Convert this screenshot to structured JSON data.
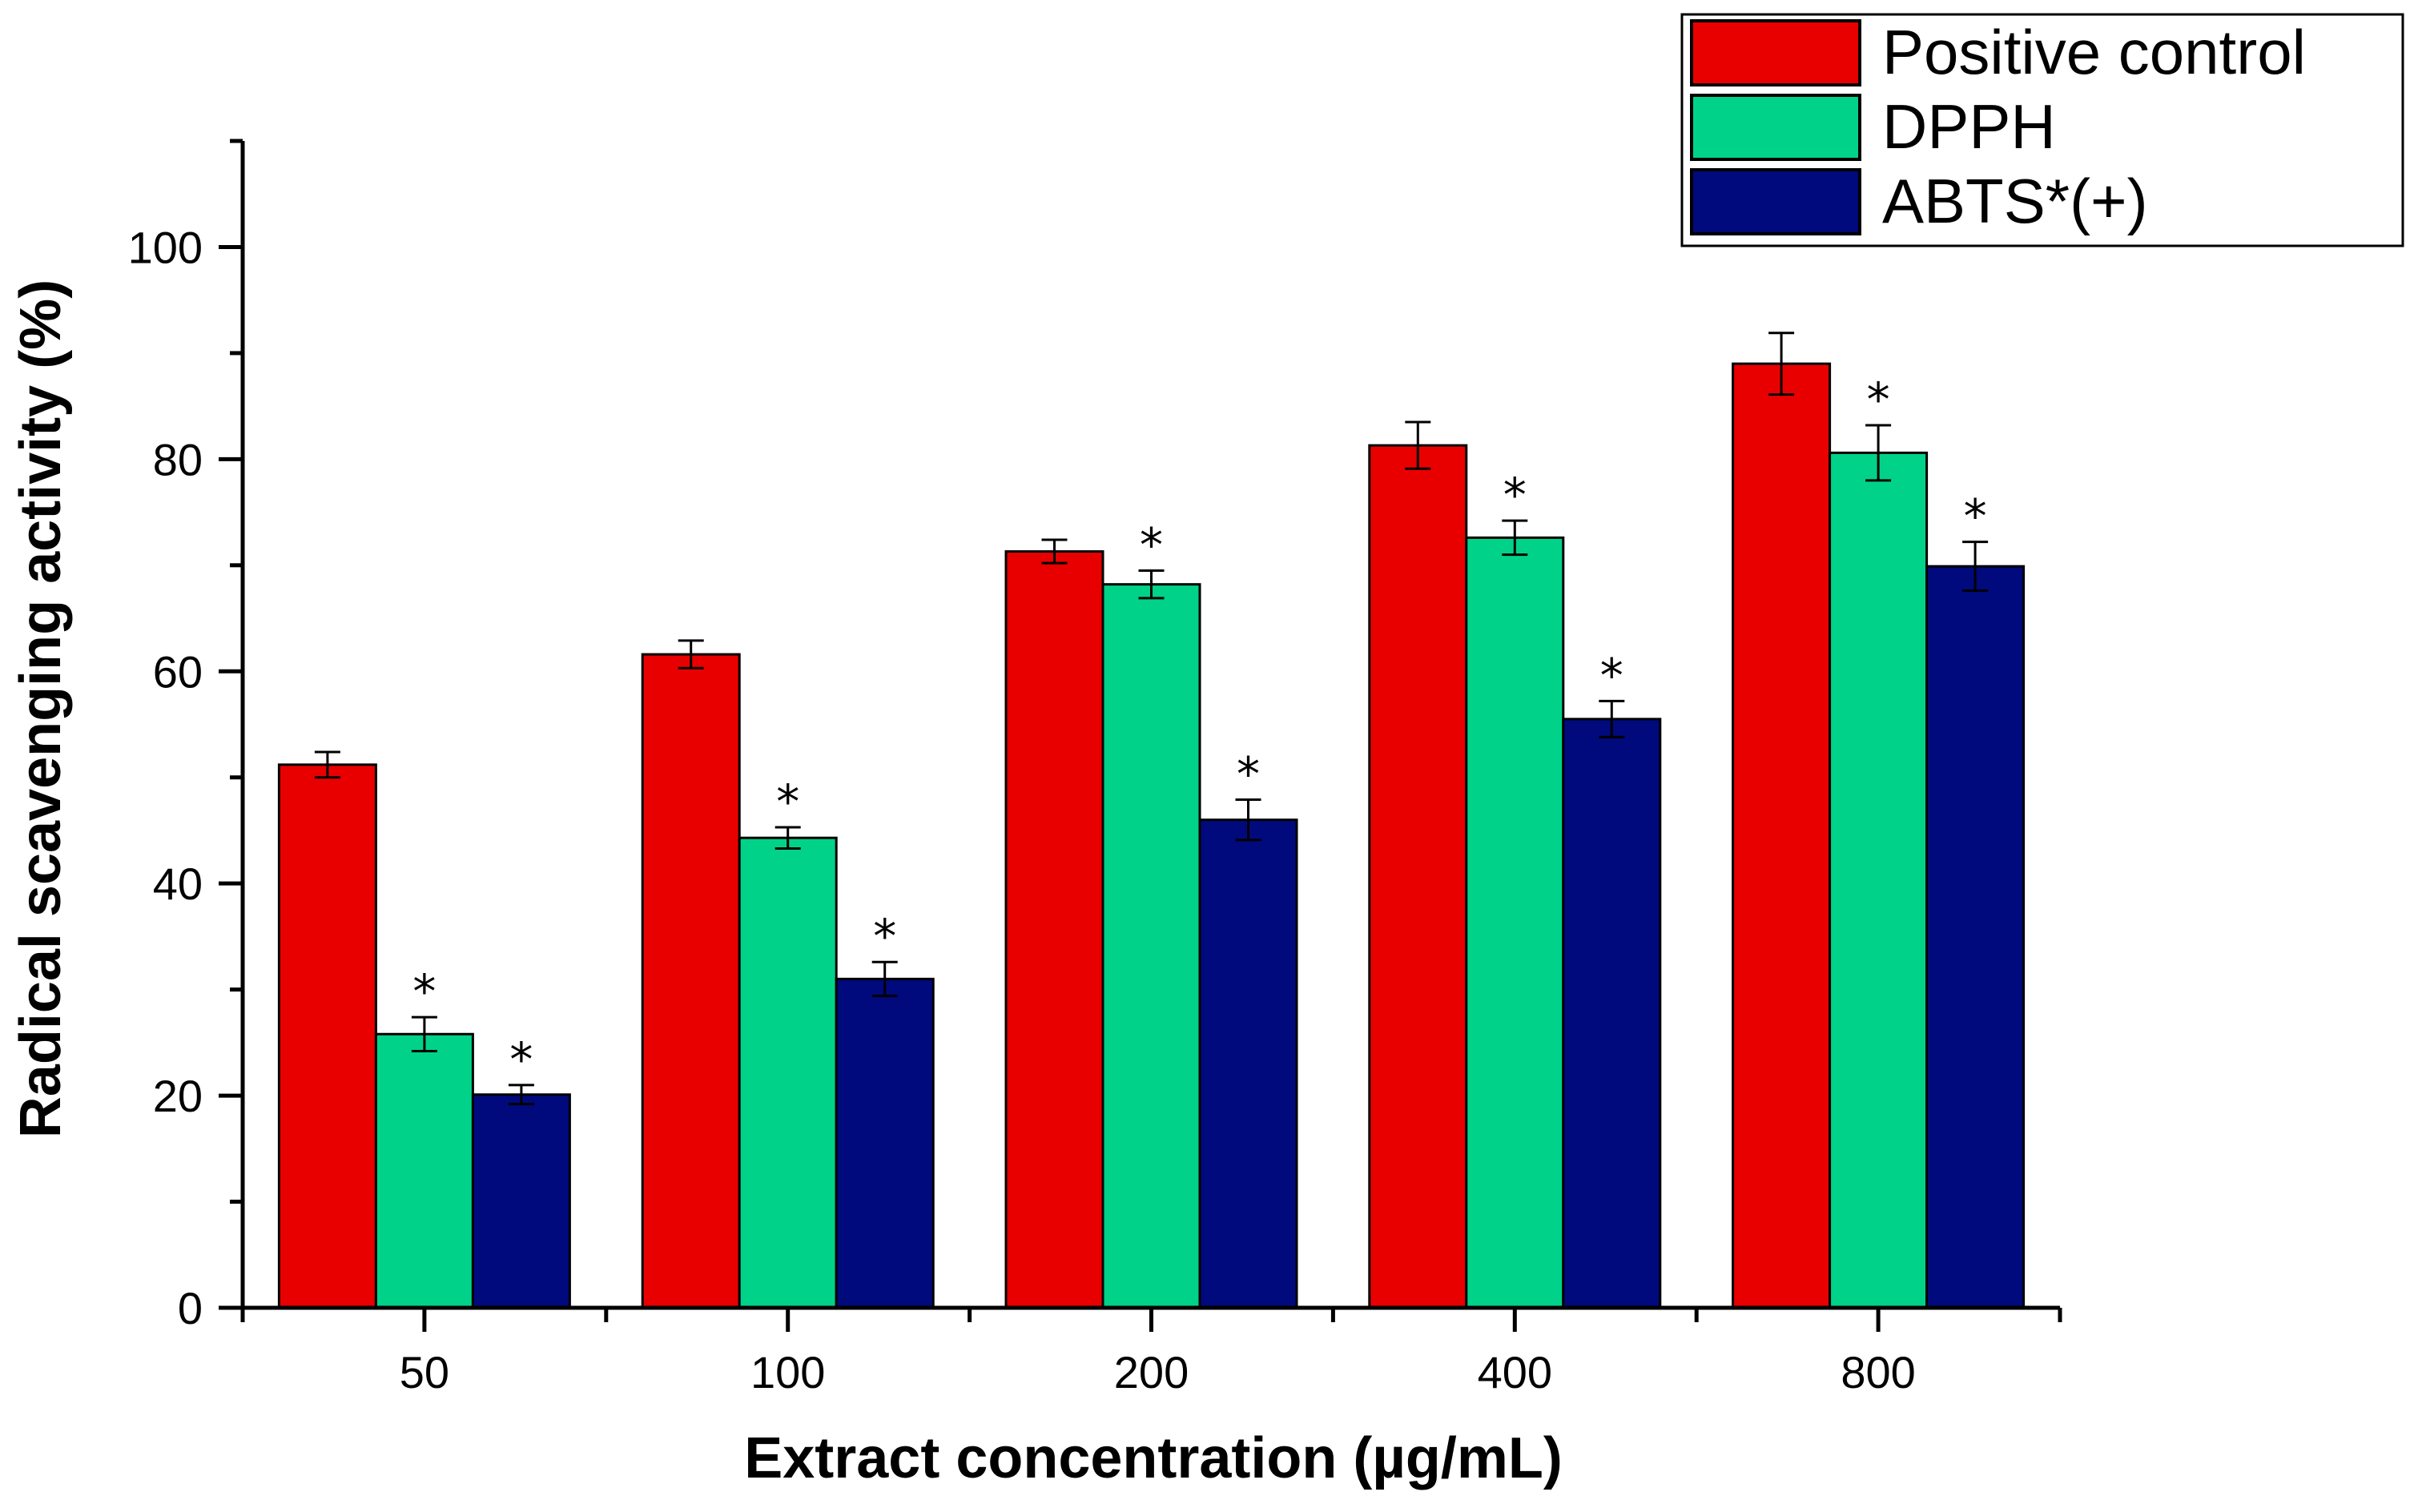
{
  "chart_data": {
    "type": "bar",
    "title": "",
    "xlabel": "Extract concentration (µg/mL)",
    "ylabel": "Radical scavenging activity (%)",
    "categories": [
      "50",
      "100",
      "200",
      "400",
      "800"
    ],
    "ylim": [
      0,
      110
    ],
    "yticks": [
      0,
      20,
      40,
      60,
      80,
      100
    ],
    "grid": false,
    "legend_position": "top-right",
    "significance_marker": "*",
    "series": [
      {
        "name": "Positive control",
        "color": "#e80000",
        "values": [
          51.2,
          61.6,
          71.3,
          81.3,
          89.0
        ],
        "errors": [
          1.2,
          1.3,
          1.1,
          2.2,
          2.9
        ],
        "significant": [
          false,
          false,
          false,
          false,
          false
        ]
      },
      {
        "name": "DPPH",
        "color": "#00d389",
        "values": [
          25.8,
          44.3,
          68.2,
          72.6,
          80.6
        ],
        "errors": [
          1.6,
          1.0,
          1.3,
          1.6,
          2.6
        ],
        "significant": [
          true,
          true,
          true,
          true,
          true
        ]
      },
      {
        "name": "ABTS*(+)",
        "color": "#000a7c",
        "values": [
          20.1,
          31.0,
          46.0,
          55.5,
          69.9
        ],
        "errors": [
          0.9,
          1.6,
          1.9,
          1.7,
          2.3
        ],
        "significant": [
          true,
          true,
          true,
          true,
          true
        ]
      }
    ]
  }
}
